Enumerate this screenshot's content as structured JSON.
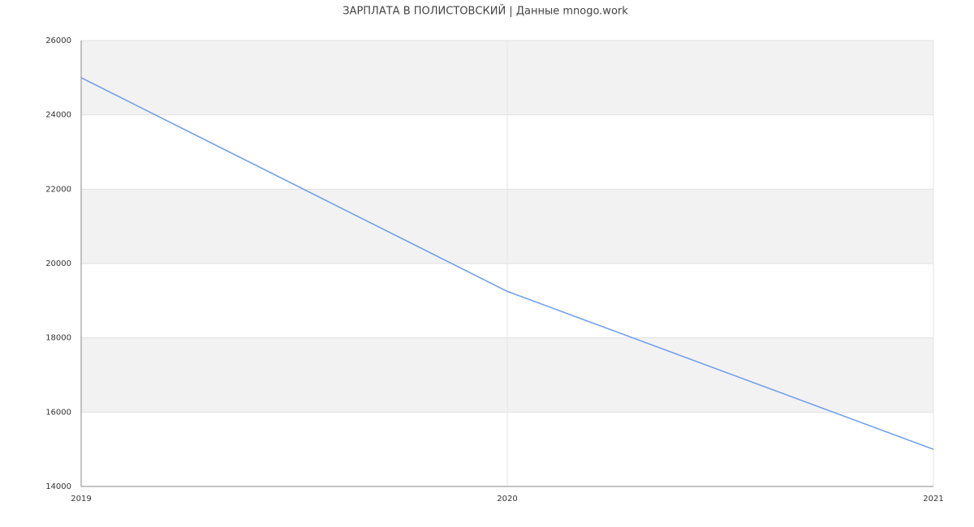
{
  "chart_data": {
    "type": "line",
    "title": "ЗАРПЛАТА В ПОЛИСТОВСКИЙ | Данные mnogo.work",
    "x": [
      2019,
      2020,
      2021
    ],
    "xlim": [
      2019,
      2021
    ],
    "xticks": [
      2019,
      2020,
      2021
    ],
    "series": [
      {
        "color": "#6d9eeb",
        "values": [
          25000,
          19250,
          15000
        ]
      }
    ],
    "ylim": [
      14000,
      26000
    ],
    "yticks": [
      14000,
      16000,
      18000,
      20000,
      22000,
      24000,
      26000
    ],
    "grid": true
  }
}
